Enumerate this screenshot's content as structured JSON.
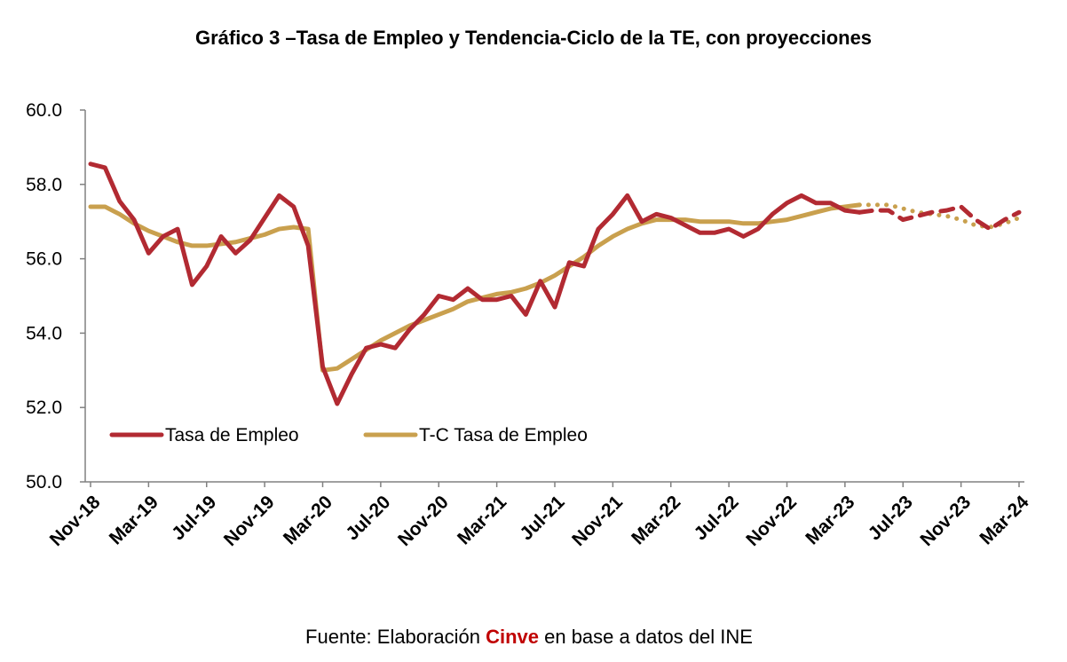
{
  "chart_data": {
    "type": "line",
    "title": "Gráfico 3 –Tasa de Empleo y Tendencia-Ciclo de la TE, con proyecciones",
    "xlabel": "",
    "ylabel": "",
    "ylim": [
      50,
      60
    ],
    "yticks": [
      "60.0",
      "58.0",
      "56.0",
      "54.0",
      "52.0",
      "50.0"
    ],
    "grid": false,
    "legend_position": "bottom-left",
    "categories": [
      "Nov-18",
      "Dec-18",
      "Jan-19",
      "Feb-19",
      "Mar-19",
      "Apr-19",
      "May-19",
      "Jun-19",
      "Jul-19",
      "Aug-19",
      "Sep-19",
      "Oct-19",
      "Nov-19",
      "Dec-19",
      "Jan-20",
      "Feb-20",
      "Mar-20",
      "Apr-20",
      "May-20",
      "Jun-20",
      "Jul-20",
      "Aug-20",
      "Sep-20",
      "Oct-20",
      "Nov-20",
      "Dec-20",
      "Jan-21",
      "Feb-21",
      "Mar-21",
      "Apr-21",
      "May-21",
      "Jun-21",
      "Jul-21",
      "Aug-21",
      "Sep-21",
      "Oct-21",
      "Nov-21",
      "Dec-21",
      "Jan-22",
      "Feb-22",
      "Mar-22",
      "Apr-22",
      "May-22",
      "Jun-22",
      "Jul-22",
      "Aug-22",
      "Sep-22",
      "Oct-22",
      "Nov-22",
      "Dec-22",
      "Jan-23",
      "Feb-23",
      "Mar-23",
      "Apr-23",
      "May-23",
      "Jun-23",
      "Jul-23",
      "Aug-23",
      "Sep-23",
      "Oct-23",
      "Nov-23",
      "Dec-23",
      "Jan-24",
      "Feb-24",
      "Mar-24"
    ],
    "x_tick_labels": [
      "Nov-18",
      "Mar-19",
      "Jul-19",
      "Nov-19",
      "Mar-20",
      "Jul-20",
      "Nov-20",
      "Mar-21",
      "Jul-21",
      "Nov-21",
      "Mar-22",
      "Jul-22",
      "Nov-22",
      "Mar-23",
      "Jul-23",
      "Nov-23",
      "Mar-24"
    ],
    "x_tick_label_indices": [
      0,
      4,
      8,
      12,
      16,
      20,
      24,
      28,
      32,
      36,
      40,
      44,
      48,
      52,
      56,
      60,
      64
    ],
    "series": [
      {
        "name": "Tasa de Empleo",
        "color": "#B22A32",
        "observed_last_index": 53,
        "projection_style": "dashed",
        "values": [
          58.55,
          58.45,
          57.55,
          57.05,
          56.15,
          56.6,
          56.8,
          55.3,
          55.8,
          56.6,
          56.15,
          56.5,
          57.1,
          57.7,
          57.4,
          56.35,
          53.1,
          52.1,
          52.9,
          53.6,
          53.7,
          53.6,
          54.1,
          54.5,
          55.0,
          54.9,
          55.2,
          54.9,
          54.9,
          55.0,
          54.5,
          55.4,
          54.7,
          55.9,
          55.8,
          56.8,
          57.2,
          57.7,
          57.0,
          57.2,
          57.1,
          56.9,
          56.7,
          56.7,
          56.8,
          56.6,
          56.8,
          57.2,
          57.5,
          57.7,
          57.5,
          57.5,
          57.3,
          57.25,
          57.3,
          57.3,
          57.05,
          57.15,
          57.25,
          57.3,
          57.4,
          57.05,
          56.8,
          57.05,
          57.25
        ]
      },
      {
        "name": "T-C Tasa de Empleo",
        "color": "#C9A04E",
        "observed_last_index": 53,
        "projection_style": "dotted",
        "values": [
          57.4,
          57.4,
          57.2,
          56.95,
          56.75,
          56.6,
          56.45,
          56.35,
          56.35,
          56.4,
          56.45,
          56.55,
          56.65,
          56.8,
          56.85,
          56.8,
          53.0,
          53.05,
          53.3,
          53.55,
          53.8,
          54.0,
          54.2,
          54.35,
          54.5,
          54.65,
          54.85,
          54.95,
          55.05,
          55.1,
          55.2,
          55.35,
          55.55,
          55.8,
          56.05,
          56.35,
          56.6,
          56.8,
          56.95,
          57.05,
          57.05,
          57.05,
          57.0,
          57.0,
          57.0,
          56.95,
          56.95,
          57.0,
          57.05,
          57.15,
          57.25,
          57.35,
          57.4,
          57.45,
          57.45,
          57.45,
          57.35,
          57.25,
          57.2,
          57.15,
          57.05,
          56.9,
          56.85,
          56.95,
          57.1
        ]
      }
    ]
  },
  "legend": {
    "items": [
      {
        "label": "Tasa de Empleo",
        "color": "#B22A32"
      },
      {
        "label": "T-C Tasa de Empleo",
        "color": "#C9A04E"
      }
    ]
  },
  "source": {
    "prefix": "Fuente: Elaboración ",
    "brand": "Cinve",
    "suffix": " en base a datos del INE",
    "brand_color": "#C00000"
  }
}
